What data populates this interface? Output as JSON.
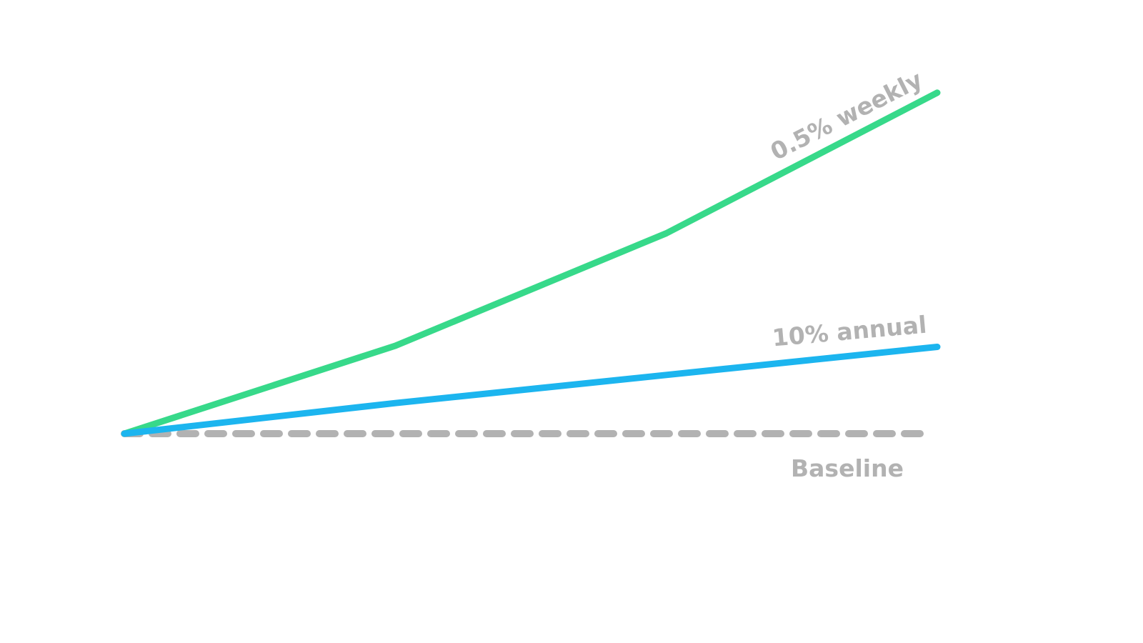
{
  "chart_data": {
    "type": "line",
    "x": [
      0,
      1,
      2,
      3
    ],
    "ylim": [
      0,
      1
    ],
    "grid": false,
    "legend": "none",
    "series": [
      {
        "name": "0.5% weekly",
        "values": [
          0,
          0.25,
          0.57,
          0.97
        ],
        "color": "#37d98a",
        "style": "solid"
      },
      {
        "name": "10% annual",
        "values": [
          0,
          0.087,
          0.167,
          0.247
        ],
        "color": "#1cb5ef",
        "style": "solid"
      },
      {
        "name": "Baseline",
        "values": [
          0,
          0,
          0,
          0
        ],
        "color": "#b2b2b2",
        "style": "dashed"
      }
    ]
  }
}
